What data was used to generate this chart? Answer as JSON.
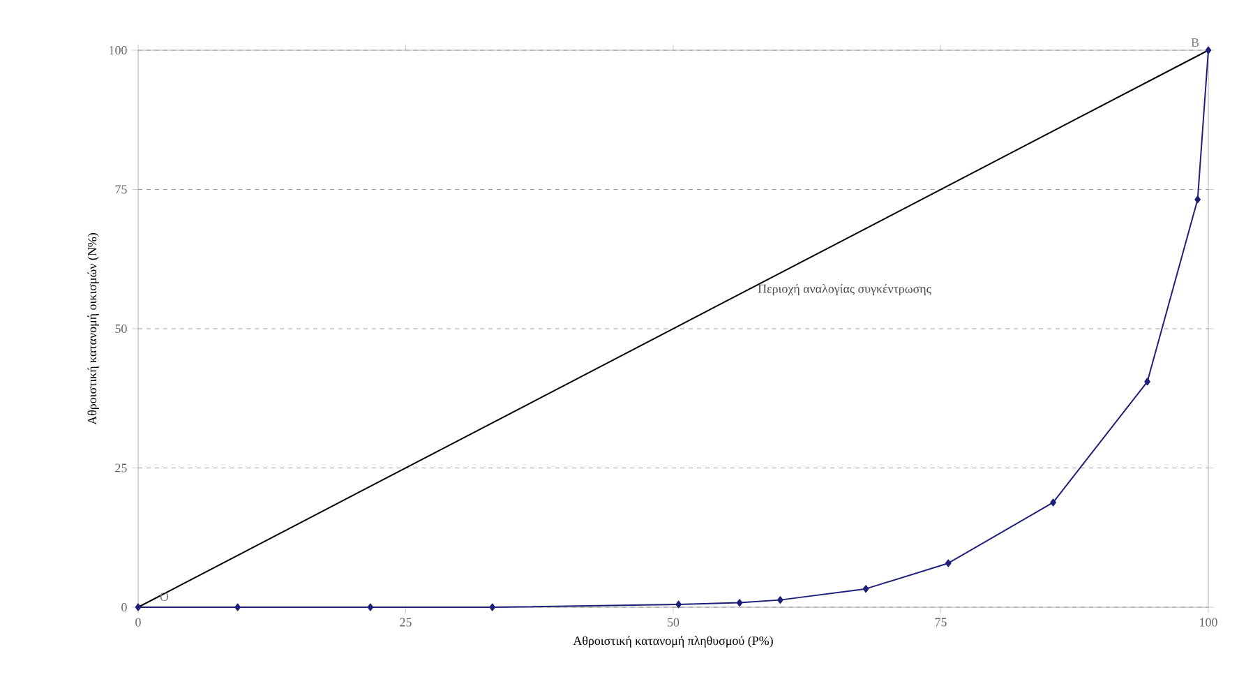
{
  "chart_data": {
    "type": "line",
    "xlabel": "Αθροιστική κατανομή πληθυσμού (P%)",
    "ylabel": "Αθροιστική κατανομή οικισμών (N%)",
    "xlim": [
      0,
      100
    ],
    "ylim": [
      0,
      100
    ],
    "xticks": [
      0,
      25,
      50,
      75,
      100
    ],
    "yticks": [
      0,
      25,
      50,
      75,
      100
    ],
    "grid": "y",
    "series": [
      {
        "color": "#000000",
        "marker": "none",
        "x": [
          0,
          100
        ],
        "values": [
          0,
          100
        ]
      },
      {
        "color": "#1f1f7a",
        "marker": "diamond",
        "x": [
          0,
          9.3,
          21.7,
          33.1,
          50.5,
          56.2,
          60.0,
          68.0,
          75.7,
          85.5,
          94.3,
          99,
          100
        ],
        "values": [
          0,
          0,
          0,
          0,
          0.5,
          0.8,
          1.3,
          3.3,
          7.9,
          18.8,
          40.5,
          73.2,
          100
        ]
      }
    ],
    "annotations": [
      {
        "text": "O",
        "x": 0,
        "y": 0
      },
      {
        "text": "Β",
        "x": 100,
        "y": 100
      },
      "Περιοχή αναλογίας συγκέντρωσης"
    ]
  }
}
